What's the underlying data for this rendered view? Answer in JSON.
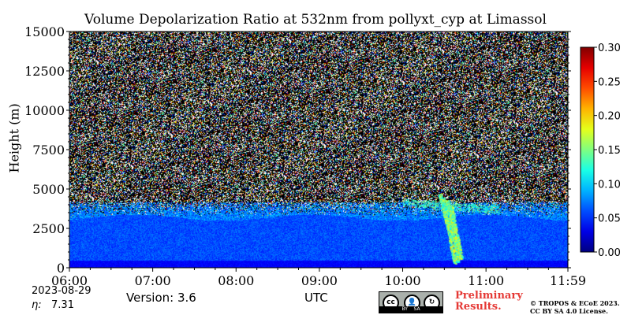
{
  "chart_data": {
    "type": "heatmap",
    "title": "Volume Depolarization Ratio at 532nm from pollyxt_cyp at Limassol",
    "ylabel": "Height (m)",
    "xlabel": "UTC",
    "ylim": [
      0,
      15000
    ],
    "xlim": [
      "06:00",
      "11:59"
    ],
    "yticks": [
      "0",
      "2500",
      "5000",
      "7500",
      "10000",
      "12500",
      "15000"
    ],
    "ytick_values": [
      0,
      2500,
      5000,
      7500,
      10000,
      12500,
      15000
    ],
    "xticks": [
      "06:00",
      "07:00",
      "08:00",
      "09:00",
      "10:00",
      "11:00",
      "11:59"
    ],
    "xtick_hours": [
      6,
      7,
      8,
      9,
      10,
      11,
      11.983
    ],
    "colorbar": {
      "range": [
        0.0,
        0.3
      ],
      "ticks": [
        "0.00",
        "0.05",
        "0.10",
        "0.15",
        "0.20",
        "0.25",
        "0.30"
      ],
      "tick_values": [
        0,
        0.05,
        0.1,
        0.15,
        0.2,
        0.25,
        0.3
      ],
      "colormap": "jet"
    },
    "features": {
      "surface_layer_top_m": 500,
      "boundary_layer_top_m": 3500,
      "noise_above_m": 3800,
      "plume": {
        "time_start": "10:00",
        "time_end": "11:10",
        "height_min_m": 300,
        "height_max_m": 4700,
        "value_range": [
          0.1,
          0.2
        ]
      }
    }
  },
  "footer": {
    "date": "2023-08-29",
    "eta_label": "η:",
    "eta_value": "7.31",
    "version": "Version: 3.6",
    "license_badge": [
      "BY",
      "SA"
    ],
    "preliminary_line1": "Preliminary",
    "preliminary_line2": "Results.",
    "copyright_line1": "© TROPOS & ECoE 2023.",
    "copyright_line2": "CC BY SA 4.0 License."
  }
}
